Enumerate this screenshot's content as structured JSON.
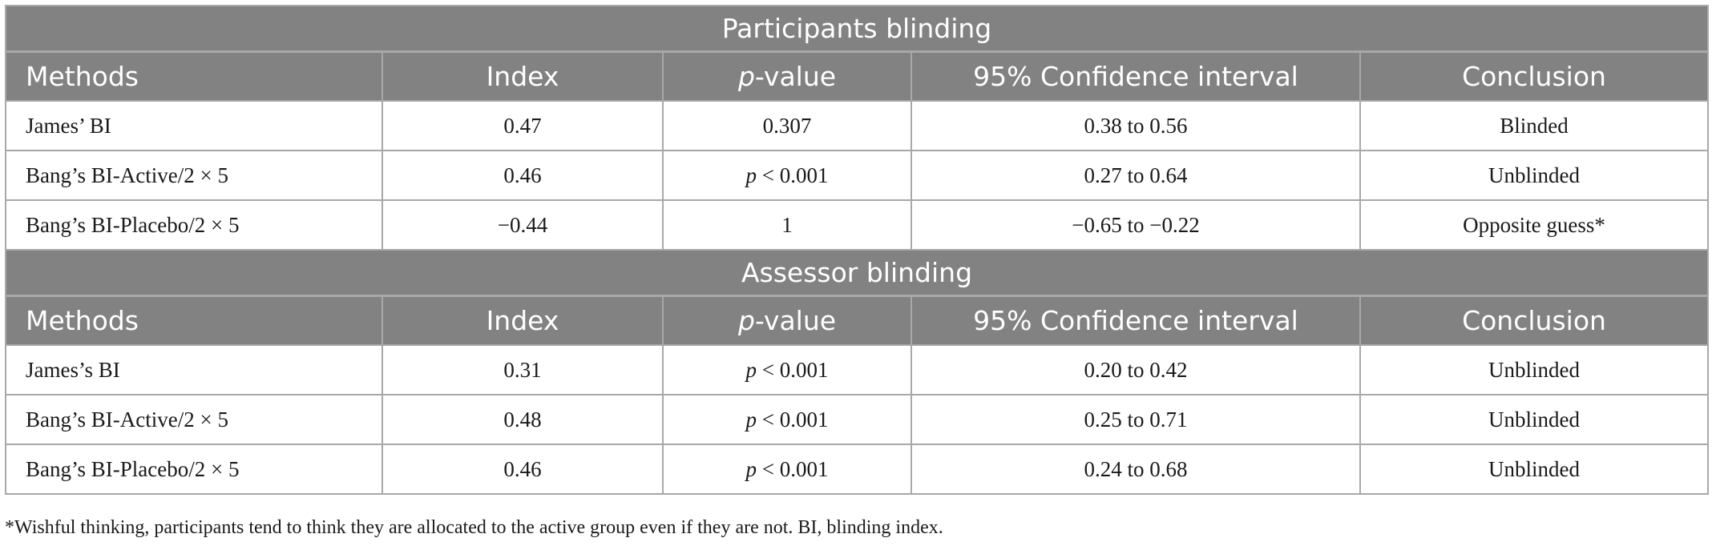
{
  "columns": [
    "Methods",
    "Index",
    "p-value",
    "95% Confidence interval",
    "Conclusion"
  ],
  "sections": [
    {
      "title": "Participants blinding",
      "rows": [
        {
          "method": "James’ BI",
          "index": "0.47",
          "pvalue": "0.307",
          "ci": "0.38 to 0.56",
          "conclusion": "Blinded"
        },
        {
          "method": "Bang’s BI-Active/2 × 5",
          "index": "0.46",
          "pvalue": "p < 0.001",
          "ci": "0.27 to 0.64",
          "conclusion": "Unblinded"
        },
        {
          "method": "Bang’s BI-Placebo/2 × 5",
          "index": "−0.44",
          "pvalue": "1",
          "ci": "−0.65 to −0.22",
          "conclusion": "Opposite guess*"
        }
      ]
    },
    {
      "title": "Assessor blinding",
      "rows": [
        {
          "method": "James’s BI",
          "index": "0.31",
          "pvalue": "p < 0.001",
          "ci": "0.20 to 0.42",
          "conclusion": "Unblinded"
        },
        {
          "method": "Bang’s BI-Active/2 × 5",
          "index": "0.48",
          "pvalue": "p < 0.001",
          "ci": "0.25 to 0.71",
          "conclusion": "Unblinded"
        },
        {
          "method": "Bang’s BI-Placebo/2 × 5",
          "index": "0.46",
          "pvalue": "p < 0.001",
          "ci": "0.24 to 0.68",
          "conclusion": "Unblinded"
        }
      ]
    }
  ],
  "footnote": "*Wishful thinking, participants tend to think they are allocated to the active group even if they are not. BI, blinding index."
}
